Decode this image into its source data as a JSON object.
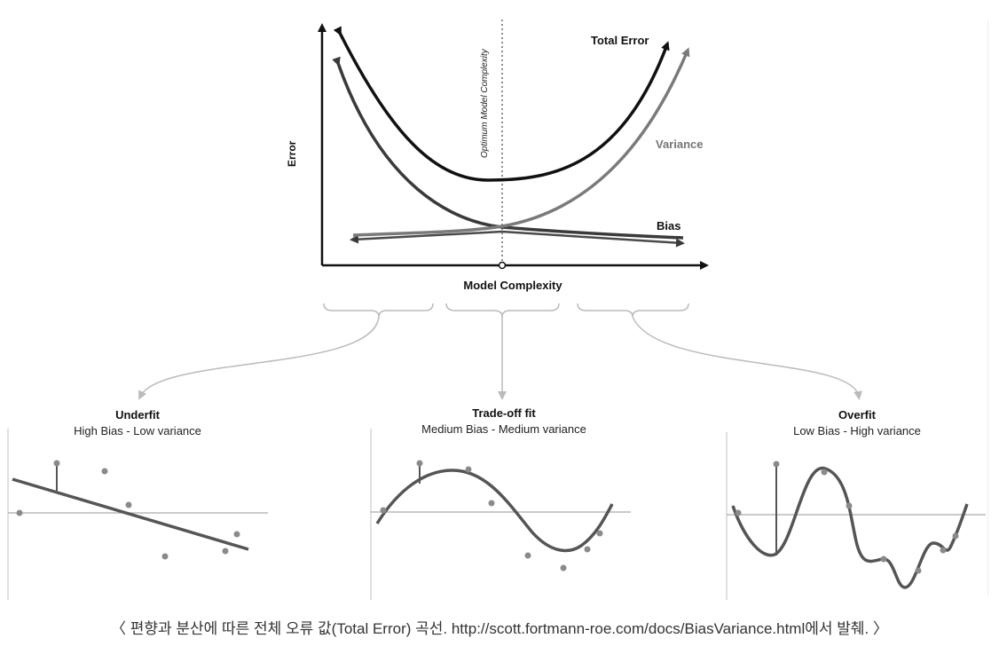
{
  "main_chart": {
    "y_axis_label": "Error",
    "x_axis_label": "Model Complexity",
    "optimum_label": "Optimum Model Complexity",
    "total_error_label": "Total Error",
    "variance_label": "Variance",
    "bias_label": "Bias"
  },
  "panels": [
    {
      "title": "Underfit",
      "subtitle": "High Bias - Low variance"
    },
    {
      "title": "Trade-off fit",
      "subtitle": "Medium Bias - Medium variance"
    },
    {
      "title": "Overfit",
      "subtitle": "Low Bias - High variance"
    }
  ],
  "colors": {
    "total_error": "#111111",
    "bias": "#3a3a3a",
    "variance": "#7a7a7a",
    "points": "#8a8a8a",
    "connector": "#bbbbbb"
  },
  "caption": "〈 편향과 분산에 따른 전체 오류 값(Total Error) 곡선. http://scott.fortmann-roe.com/docs/BiasVariance.html에서 발췌. 〉"
}
